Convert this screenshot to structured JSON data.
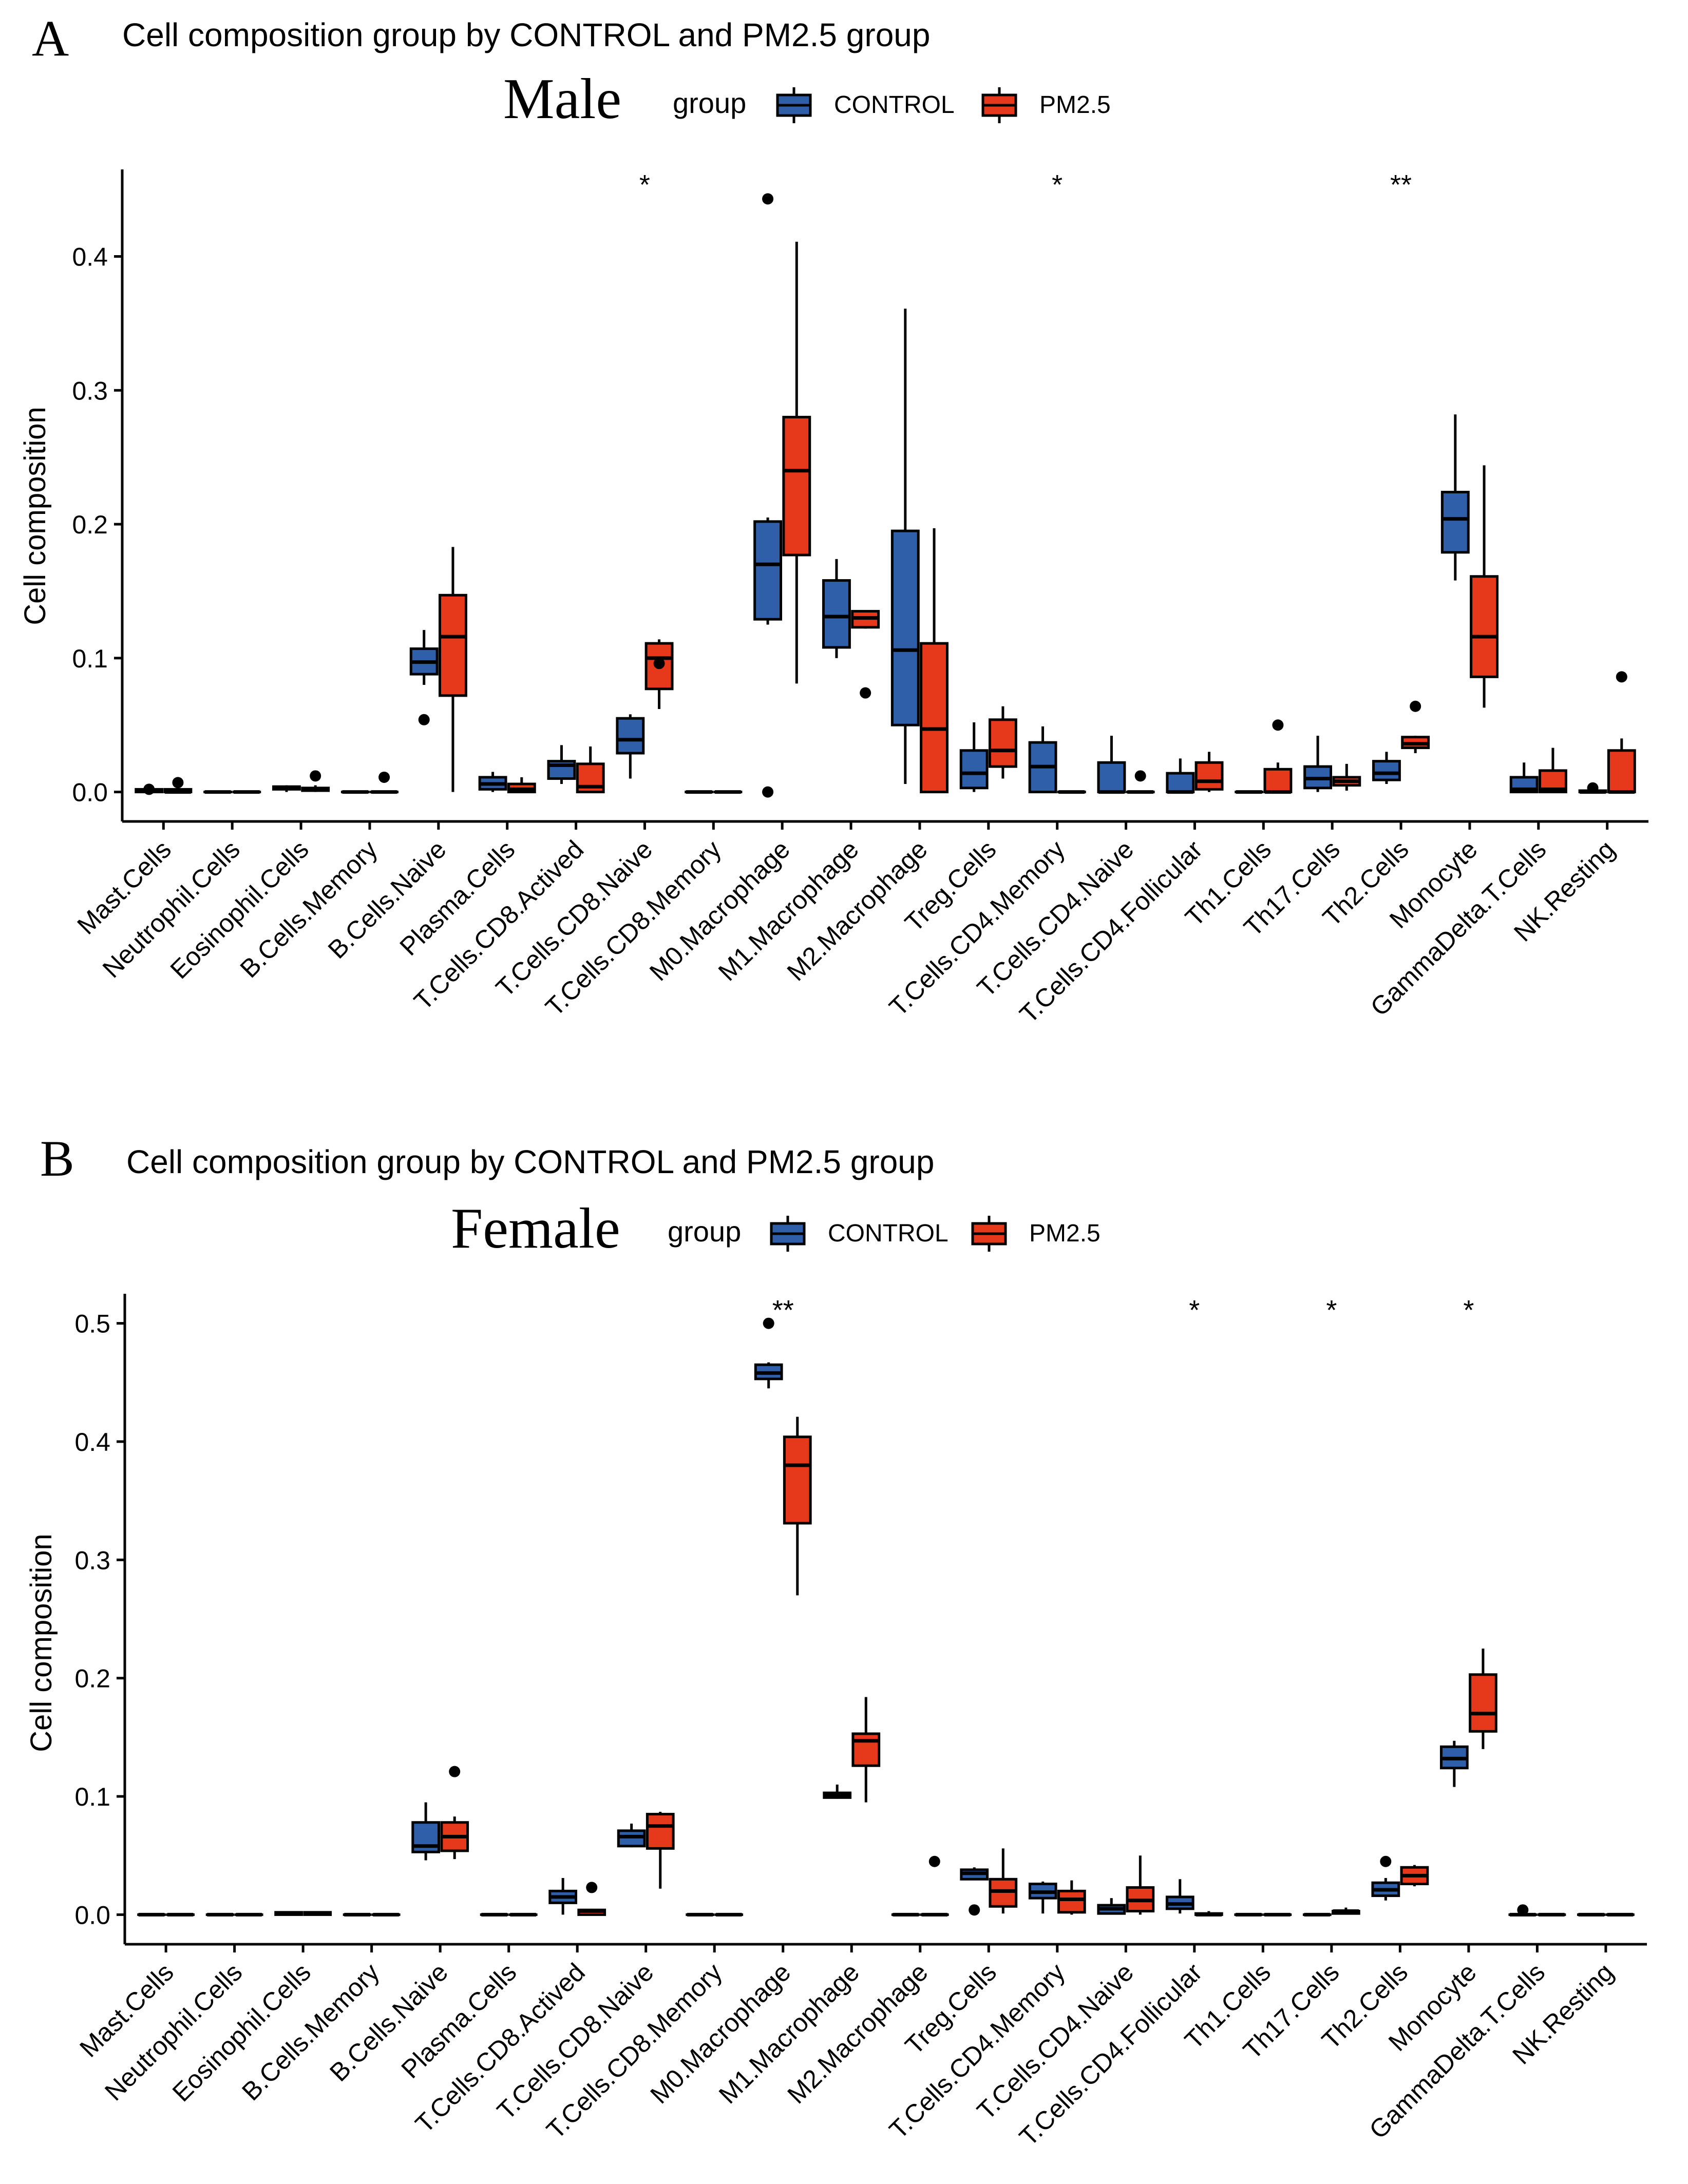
{
  "figure": {
    "colors": {
      "control": "#2E5FA8",
      "pm25": "#E6391B",
      "ink": "#000000"
    },
    "categories": [
      "Mast.Cells",
      "Neutrophil.Cells",
      "Eosinophil.Cells",
      "B.Cells.Memory",
      "B.Cells.Naive",
      "Plasma.Cells",
      "T.Cells.CD8.Actived",
      "T.Cells.CD8.Naive",
      "T.Cells.CD8.Memory",
      "M0.Macrophage",
      "M1.Macrophage",
      "M2.Macrophage",
      "Treg.Cells",
      "T.Cells.CD4.Memory",
      "T.Cells.CD4.Naive",
      "T.Cells.CD4.Follicular",
      "Th1.Cells",
      "Th17.Cells",
      "Th2.Cells",
      "Monocyte",
      "GammaDelta.T.Cells",
      "NK.Resting"
    ]
  },
  "chart_data": [
    {
      "type": "box",
      "panel_label": "A",
      "title": "Cell composition group by CONTROL and PM2.5 group",
      "subtitle": "Male",
      "legend": {
        "title": "group",
        "entries": [
          "CONTROL",
          "PM2.5"
        ],
        "placement": "top"
      },
      "ylabel": "Cell composition",
      "ylim": [
        -0.022,
        0.465
      ],
      "yticks": [
        0.0,
        0.1,
        0.2,
        0.3,
        0.4
      ],
      "ytick_labels": [
        "0.0",
        "0.1",
        "0.2",
        "0.3",
        "0.4"
      ],
      "significance": [
        {
          "category": "T.Cells.CD8.Naive",
          "label": "*"
        },
        {
          "category": "T.Cells.CD4.Memory",
          "label": "*"
        },
        {
          "category": "Th2.Cells",
          "label": "**"
        }
      ],
      "series": [
        {
          "name": "CONTROL",
          "boxes": [
            [
              0,
              0,
              0.001,
              0.002,
              0.002
            ],
            [
              0,
              0,
              0,
              0,
              0
            ],
            [
              0,
              0.002,
              0.003,
              0.004,
              0.005
            ],
            [
              0,
              0,
              0,
              0,
              0
            ],
            [
              0.08,
              0.088,
              0.097,
              0.107,
              0.121
            ],
            [
              0,
              0.002,
              0.006,
              0.011,
              0.015
            ],
            [
              0.006,
              0.01,
              0.02,
              0.023,
              0.035
            ],
            [
              0.01,
              0.029,
              0.039,
              0.055,
              0.058
            ],
            [
              0,
              0,
              0,
              0,
              0
            ],
            [
              0.125,
              0.129,
              0.17,
              0.202,
              0.205
            ],
            [
              0.1,
              0.108,
              0.131,
              0.158,
              0.174
            ],
            [
              0.006,
              0.05,
              0.106,
              0.195,
              0.361
            ],
            [
              0,
              0.003,
              0.014,
              0.031,
              0.052
            ],
            [
              0,
              0,
              0.019,
              0.037,
              0.049
            ],
            [
              0,
              0,
              0,
              0.022,
              0.042
            ],
            [
              0,
              0,
              0,
              0.014,
              0.025
            ],
            [
              0,
              0,
              0,
              0,
              0
            ],
            [
              0,
              0.003,
              0.01,
              0.019,
              0.042
            ],
            [
              0.006,
              0.009,
              0.014,
              0.023,
              0.03
            ],
            [
              0.158,
              0.179,
              0.204,
              0.224,
              0.282
            ],
            [
              0,
              0,
              0.002,
              0.011,
              0.022
            ],
            [
              0,
              0,
              0,
              0.001,
              0.005
            ]
          ],
          "outliers": [
            {
              "category": "Mast.Cells",
              "value": 0.002
            },
            {
              "category": "B.Cells.Naive",
              "value": 0.054
            },
            {
              "category": "M0.Macrophage",
              "value": 0.443
            },
            {
              "category": "M0.Macrophage",
              "value": 0.0
            },
            {
              "category": "NK.Resting",
              "value": 0.003
            }
          ]
        },
        {
          "name": "PM2.5",
          "boxes": [
            [
              0,
              0,
              0,
              0.002,
              0.004
            ],
            [
              0,
              0,
              0,
              0,
              0
            ],
            [
              0,
              0.001,
              0.002,
              0.003,
              0.005
            ],
            [
              0,
              0,
              0,
              0,
              0
            ],
            [
              0,
              0.072,
              0.116,
              0.147,
              0.183
            ],
            [
              0,
              0,
              0.002,
              0.006,
              0.011
            ],
            [
              0,
              0,
              0.004,
              0.021,
              0.034
            ],
            [
              0.062,
              0.077,
              0.1,
              0.111,
              0.114
            ],
            [
              0,
              0,
              0,
              0,
              0
            ],
            [
              0.081,
              0.177,
              0.24,
              0.28,
              0.411
            ],
            [
              0.122,
              0.123,
              0.13,
              0.135,
              0.135
            ],
            [
              0,
              0,
              0.047,
              0.111,
              0.197
            ],
            [
              0.01,
              0.019,
              0.031,
              0.054,
              0.064
            ],
            [
              0,
              0,
              0,
              0,
              0
            ],
            [
              0,
              0,
              0,
              0,
              0
            ],
            [
              0,
              0.002,
              0.008,
              0.022,
              0.03
            ],
            [
              0,
              0,
              0,
              0.017,
              0.022
            ],
            [
              0.001,
              0.005,
              0.008,
              0.011,
              0.021
            ],
            [
              0.029,
              0.033,
              0.036,
              0.041,
              0.042
            ],
            [
              0.063,
              0.086,
              0.116,
              0.161,
              0.244
            ],
            [
              0,
              0,
              0.002,
              0.016,
              0.033
            ],
            [
              0,
              0,
              0,
              0.031,
              0.04
            ]
          ],
          "outliers": [
            {
              "category": "Mast.Cells",
              "value": 0.007
            },
            {
              "category": "Eosinophil.Cells",
              "value": 0.012
            },
            {
              "category": "B.Cells.Memory",
              "value": 0.011
            },
            {
              "category": "T.Cells.CD8.Naive",
              "value": 0.096
            },
            {
              "category": "M1.Macrophage",
              "value": 0.074
            },
            {
              "category": "T.Cells.CD4.Naive",
              "value": 0.012
            },
            {
              "category": "Th1.Cells",
              "value": 0.05
            },
            {
              "category": "Th2.Cells",
              "value": 0.064
            },
            {
              "category": "NK.Resting",
              "value": 0.086
            }
          ]
        }
      ]
    },
    {
      "type": "box",
      "panel_label": "B",
      "title": "Cell composition group by CONTROL and PM2.5 group",
      "subtitle": "Female",
      "legend": {
        "title": "group",
        "entries": [
          "CONTROL",
          "PM2.5"
        ],
        "placement": "top"
      },
      "ylabel": "Cell composition",
      "ylim": [
        -0.025,
        0.525
      ],
      "yticks": [
        0.0,
        0.1,
        0.2,
        0.3,
        0.4,
        0.5
      ],
      "ytick_labels": [
        "0.0",
        "0.1",
        "0.2",
        "0.3",
        "0.4",
        "0.5"
      ],
      "significance": [
        {
          "category": "M0.Macrophage",
          "label": "**"
        },
        {
          "category": "T.Cells.CD4.Follicular",
          "label": "*"
        },
        {
          "category": "Th17.Cells",
          "label": "*"
        },
        {
          "category": "Monocyte",
          "label": "*"
        }
      ],
      "series": [
        {
          "name": "CONTROL",
          "boxes": [
            [
              0,
              0,
              0,
              0,
              0
            ],
            [
              0,
              0,
              0,
              0,
              0
            ],
            [
              0,
              0,
              0.001,
              0.002,
              0.003
            ],
            [
              0,
              0,
              0,
              0,
              0
            ],
            [
              0.046,
              0.053,
              0.058,
              0.078,
              0.095
            ],
            [
              0,
              0,
              0,
              0,
              0
            ],
            [
              0,
              0.01,
              0.015,
              0.02,
              0.031
            ],
            [
              0.057,
              0.058,
              0.066,
              0.071,
              0.077
            ],
            [
              0,
              0,
              0,
              0,
              0
            ],
            [
              0.445,
              0.453,
              0.458,
              0.465,
              0.467
            ],
            [
              0.098,
              0.099,
              0.101,
              0.103,
              0.11
            ],
            [
              0,
              0,
              0,
              0,
              0
            ],
            [
              0.03,
              0.03,
              0.035,
              0.038,
              0.04
            ],
            [
              0.001,
              0.014,
              0.019,
              0.026,
              0.028
            ],
            [
              0,
              0.001,
              0.005,
              0.008,
              0.014
            ],
            [
              0.001,
              0.005,
              0.009,
              0.015,
              0.03
            ],
            [
              0,
              0,
              0,
              0,
              0
            ],
            [
              0,
              0,
              0,
              0,
              0
            ],
            [
              0.012,
              0.016,
              0.021,
              0.027,
              0.031
            ],
            [
              0.108,
              0.124,
              0.132,
              0.142,
              0.147
            ],
            [
              0,
              0,
              0,
              0,
              0
            ],
            [
              0,
              0,
              0,
              0,
              0
            ]
          ],
          "outliers": [
            {
              "category": "M0.Macrophage",
              "value": 0.5
            },
            {
              "category": "Treg.Cells",
              "value": 0.004
            },
            {
              "category": "Th2.Cells",
              "value": 0.045
            },
            {
              "category": "GammaDelta.T.Cells",
              "value": 0.004
            }
          ]
        },
        {
          "name": "PM2.5",
          "boxes": [
            [
              0,
              0,
              0,
              0,
              0
            ],
            [
              0,
              0,
              0,
              0,
              0
            ],
            [
              0,
              0,
              0.001,
              0.002,
              0.003
            ],
            [
              0,
              0,
              0,
              0,
              0
            ],
            [
              0.047,
              0.054,
              0.066,
              0.078,
              0.083
            ],
            [
              0,
              0,
              0,
              0,
              0
            ],
            [
              0,
              0,
              0.003,
              0.004,
              0.005
            ],
            [
              0.022,
              0.056,
              0.075,
              0.085,
              0.087
            ],
            [
              0,
              0,
              0,
              0,
              0
            ],
            [
              0.27,
              0.331,
              0.38,
              0.404,
              0.421
            ],
            [
              0.095,
              0.126,
              0.147,
              0.153,
              0.184
            ],
            [
              0,
              0,
              0,
              0,
              0
            ],
            [
              0.001,
              0.007,
              0.02,
              0.03,
              0.056
            ],
            [
              0,
              0.002,
              0.013,
              0.02,
              0.029
            ],
            [
              0,
              0.003,
              0.012,
              0.023,
              0.05
            ],
            [
              0,
              0,
              0,
              0.001,
              0.003
            ],
            [
              0,
              0,
              0,
              0,
              0
            ],
            [
              0,
              0.001,
              0.003,
              0.003,
              0.006
            ],
            [
              0.024,
              0.026,
              0.033,
              0.04,
              0.042
            ],
            [
              0.14,
              0.155,
              0.17,
              0.203,
              0.225
            ],
            [
              0,
              0,
              0,
              0,
              0
            ],
            [
              0,
              0,
              0,
              0,
              0
            ]
          ],
          "outliers": [
            {
              "category": "B.Cells.Naive",
              "value": 0.121
            },
            {
              "category": "T.Cells.CD8.Actived",
              "value": 0.023
            },
            {
              "category": "M2.Macrophage",
              "value": 0.045
            }
          ]
        }
      ]
    }
  ]
}
